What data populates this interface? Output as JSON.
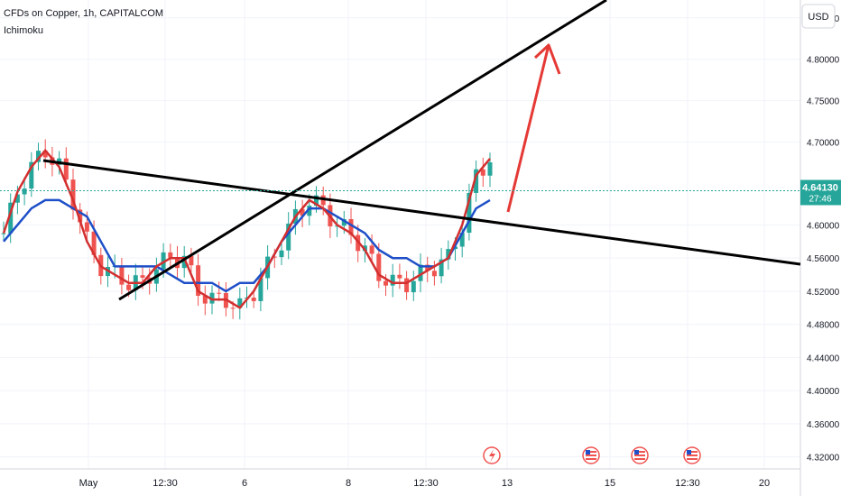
{
  "header": {
    "title": "CFDs on Copper, 1h, CAPITALCOM",
    "indicator": "Ichimoku",
    "currency": "USD"
  },
  "price_badge": {
    "price": "4.64130",
    "countdown": "27:46"
  },
  "colors": {
    "up_candle": "#26a69a",
    "down_candle": "#ef5350",
    "conversion_line": "#d32f2f",
    "base_line": "#1e4fc8",
    "trendline": "#000000",
    "arrow": "#e53935",
    "badge": "#26a69a"
  },
  "events": [
    {
      "icon": "lightning-icon",
      "x_label_near": "13"
    },
    {
      "icon": "us-flag-icon",
      "x_label_near": "15"
    },
    {
      "icon": "us-flag-icon",
      "x_label_near": "15"
    },
    {
      "icon": "us-flag-icon",
      "x_label_near": "12:30"
    }
  ],
  "chart_data": {
    "type": "candlestick",
    "title": "CFDs on Copper, 1h, CAPITALCOM",
    "indicator": "Ichimoku",
    "y_axis": {
      "ticks": [
        "4.85000",
        "4.80000",
        "4.75000",
        "4.70000",
        "4.60000",
        "4.56000",
        "4.52000",
        "4.48000",
        "4.44000",
        "4.40000",
        "4.36000",
        "4.32000"
      ],
      "range": [
        4.31,
        4.86
      ],
      "currency": "USD"
    },
    "x_axis": {
      "ticks": [
        "May",
        "12:30",
        "6",
        "8",
        "12:30",
        "13",
        "15",
        "12:30",
        "20"
      ]
    },
    "last_price": 4.6413,
    "conversion_line": [
      [
        0,
        4.59
      ],
      [
        2,
        4.64
      ],
      [
        4,
        4.67
      ],
      [
        6,
        4.69
      ],
      [
        8,
        4.67
      ],
      [
        10,
        4.63
      ],
      [
        12,
        4.58
      ],
      [
        14,
        4.55
      ],
      [
        16,
        4.54
      ],
      [
        18,
        4.53
      ],
      [
        20,
        4.53
      ],
      [
        22,
        4.55
      ],
      [
        24,
        4.56
      ],
      [
        26,
        4.56
      ],
      [
        28,
        4.52
      ],
      [
        30,
        4.51
      ],
      [
        32,
        4.51
      ],
      [
        34,
        4.5
      ],
      [
        36,
        4.52
      ],
      [
        38,
        4.55
      ],
      [
        40,
        4.58
      ],
      [
        42,
        4.61
      ],
      [
        44,
        4.63
      ],
      [
        46,
        4.62
      ],
      [
        48,
        4.6
      ],
      [
        50,
        4.59
      ],
      [
        52,
        4.57
      ],
      [
        54,
        4.54
      ],
      [
        56,
        4.53
      ],
      [
        58,
        4.53
      ],
      [
        60,
        4.54
      ],
      [
        62,
        4.55
      ],
      [
        64,
        4.56
      ],
      [
        66,
        4.6
      ],
      [
        68,
        4.66
      ],
      [
        70,
        4.68
      ]
    ],
    "base_line": [
      [
        0,
        4.58
      ],
      [
        2,
        4.6
      ],
      [
        4,
        4.62
      ],
      [
        6,
        4.63
      ],
      [
        8,
        4.63
      ],
      [
        10,
        4.62
      ],
      [
        12,
        4.61
      ],
      [
        14,
        4.58
      ],
      [
        16,
        4.55
      ],
      [
        18,
        4.55
      ],
      [
        20,
        4.55
      ],
      [
        22,
        4.55
      ],
      [
        24,
        4.54
      ],
      [
        26,
        4.53
      ],
      [
        28,
        4.53
      ],
      [
        30,
        4.53
      ],
      [
        32,
        4.52
      ],
      [
        34,
        4.53
      ],
      [
        36,
        4.53
      ],
      [
        38,
        4.55
      ],
      [
        40,
        4.58
      ],
      [
        42,
        4.6
      ],
      [
        44,
        4.62
      ],
      [
        46,
        4.62
      ],
      [
        48,
        4.61
      ],
      [
        50,
        4.6
      ],
      [
        52,
        4.59
      ],
      [
        54,
        4.57
      ],
      [
        56,
        4.56
      ],
      [
        58,
        4.56
      ],
      [
        60,
        4.55
      ],
      [
        62,
        4.55
      ],
      [
        64,
        4.56
      ],
      [
        66,
        4.59
      ],
      [
        68,
        4.62
      ],
      [
        70,
        4.63
      ]
    ],
    "annotations": [
      "rising trendline",
      "falling trendline",
      "red upward arrow"
    ]
  }
}
